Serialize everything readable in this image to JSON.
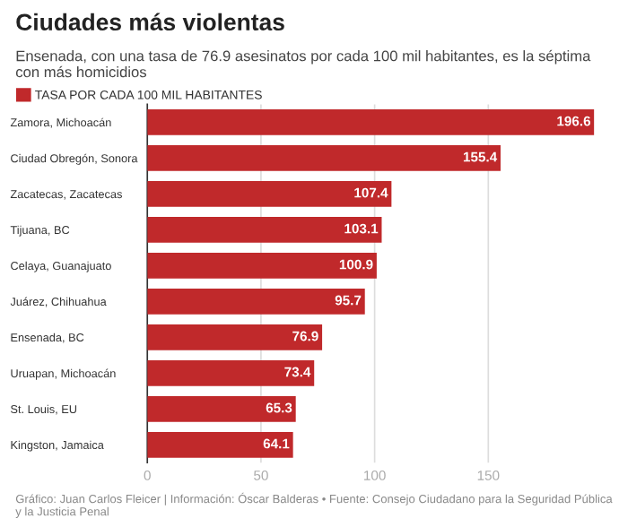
{
  "chart_data": {
    "type": "bar",
    "orientation": "horizontal",
    "title": "Ciudades más violentas",
    "subtitle": "Ensenada, con una tasa de 76.9 asesinatos por cada 100 mil habitantes, es la séptima con más homicidios",
    "categories": [
      "Zamora, Michoacán",
      "Ciudad Obregón, Sonora",
      "Zacatecas, Zacatecas",
      "Tijuana, BC",
      "Celaya, Guanajuato",
      "Juárez, Chihuahua",
      "Ensenada, BC",
      "Uruapan, Michoacán",
      "St. Louis, EU",
      "Kingston, Jamaica"
    ],
    "series": [
      {
        "name": "TASA POR CADA 100 MIL HABITANTES",
        "color": "#c0292b",
        "values": [
          196.6,
          155.4,
          107.4,
          103.1,
          100.9,
          95.7,
          76.9,
          73.4,
          65.3,
          64.1
        ]
      }
    ],
    "xlim": [
      0,
      196.6
    ],
    "xticks": [
      0,
      50,
      100,
      150
    ],
    "grid": "x",
    "legend": "top left",
    "data_labels": true,
    "annotations": [
      "Gráfico: Juan Carlos Fleicer | Información: Óscar Balderas • Fuente: Consejo Ciudadano para la Seguridad Pública y la Justicia Penal"
    ]
  }
}
